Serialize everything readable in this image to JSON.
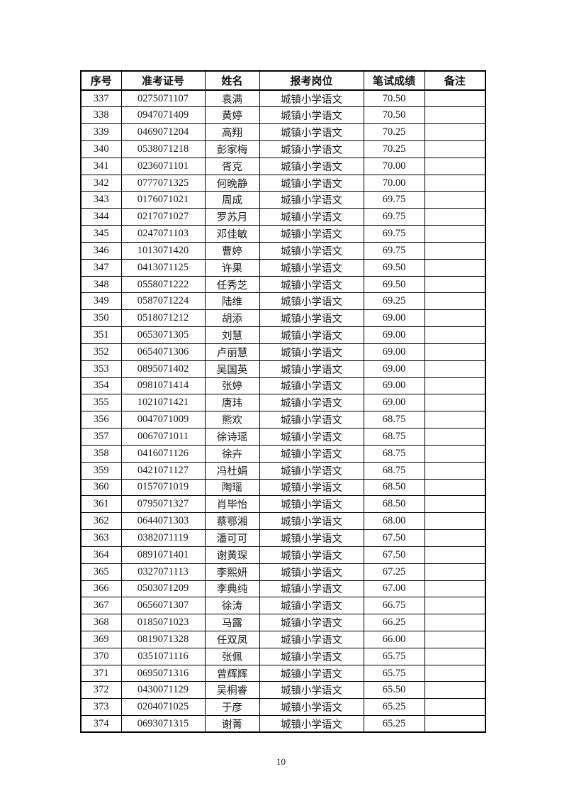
{
  "page": {
    "number": "10"
  },
  "colors": {
    "background": "#ffffff",
    "border": "#000000",
    "text": "#1a1a1a"
  },
  "table": {
    "columns": [
      "序号",
      "准考证号",
      "姓名",
      "报考岗位",
      "笔试成绩",
      "备注"
    ],
    "rows": [
      [
        "337",
        "0275071107",
        "袁满",
        "城镇小学语文",
        "70.50",
        ""
      ],
      [
        "338",
        "0947071409",
        "黄婷",
        "城镇小学语文",
        "70.50",
        ""
      ],
      [
        "339",
        "0469071204",
        "高翔",
        "城镇小学语文",
        "70.25",
        ""
      ],
      [
        "340",
        "0538071218",
        "彭家梅",
        "城镇小学语文",
        "70.25",
        ""
      ],
      [
        "341",
        "0236071101",
        "胥克",
        "城镇小学语文",
        "70.00",
        ""
      ],
      [
        "342",
        "0777071325",
        "何晚静",
        "城镇小学语文",
        "70.00",
        ""
      ],
      [
        "343",
        "0176071021",
        "周成",
        "城镇小学语文",
        "69.75",
        ""
      ],
      [
        "344",
        "0217071027",
        "罗苏月",
        "城镇小学语文",
        "69.75",
        ""
      ],
      [
        "345",
        "0247071103",
        "邓佳敏",
        "城镇小学语文",
        "69.75",
        ""
      ],
      [
        "346",
        "1013071420",
        "曹婷",
        "城镇小学语文",
        "69.75",
        ""
      ],
      [
        "347",
        "0413071125",
        "许果",
        "城镇小学语文",
        "69.50",
        ""
      ],
      [
        "348",
        "0558071222",
        "任秀芝",
        "城镇小学语文",
        "69.50",
        ""
      ],
      [
        "349",
        "0587071224",
        "陆维",
        "城镇小学语文",
        "69.25",
        ""
      ],
      [
        "350",
        "0518071212",
        "胡添",
        "城镇小学语文",
        "69.00",
        ""
      ],
      [
        "351",
        "0653071305",
        "刘慧",
        "城镇小学语文",
        "69.00",
        ""
      ],
      [
        "352",
        "0654071306",
        "卢丽慧",
        "城镇小学语文",
        "69.00",
        ""
      ],
      [
        "353",
        "0895071402",
        "吴国英",
        "城镇小学语文",
        "69.00",
        ""
      ],
      [
        "354",
        "0981071414",
        "张婷",
        "城镇小学语文",
        "69.00",
        ""
      ],
      [
        "355",
        "1021071421",
        "唐玮",
        "城镇小学语文",
        "69.00",
        ""
      ],
      [
        "356",
        "0047071009",
        "熊欢",
        "城镇小学语文",
        "68.75",
        ""
      ],
      [
        "357",
        "0067071011",
        "徐诗瑶",
        "城镇小学语文",
        "68.75",
        ""
      ],
      [
        "358",
        "0416071126",
        "徐卉",
        "城镇小学语文",
        "68.75",
        ""
      ],
      [
        "359",
        "0421071127",
        "冯杜娟",
        "城镇小学语文",
        "68.75",
        ""
      ],
      [
        "360",
        "0157071019",
        "陶瑶",
        "城镇小学语文",
        "68.50",
        ""
      ],
      [
        "361",
        "0795071327",
        "肖毕怡",
        "城镇小学语文",
        "68.50",
        ""
      ],
      [
        "362",
        "0644071303",
        "蔡鄂湘",
        "城镇小学语文",
        "68.00",
        ""
      ],
      [
        "363",
        "0382071119",
        "潘可可",
        "城镇小学语文",
        "67.50",
        ""
      ],
      [
        "364",
        "0891071401",
        "谢黄琛",
        "城镇小学语文",
        "67.50",
        ""
      ],
      [
        "365",
        "0327071113",
        "李熙妍",
        "城镇小学语文",
        "67.25",
        ""
      ],
      [
        "366",
        "0503071209",
        "李典纯",
        "城镇小学语文",
        "67.00",
        ""
      ],
      [
        "367",
        "0656071307",
        "徐涛",
        "城镇小学语文",
        "66.75",
        ""
      ],
      [
        "368",
        "0185071023",
        "马露",
        "城镇小学语文",
        "66.25",
        ""
      ],
      [
        "369",
        "0819071328",
        "任双凤",
        "城镇小学语文",
        "66.00",
        ""
      ],
      [
        "370",
        "0351071116",
        "张佩",
        "城镇小学语文",
        "65.75",
        ""
      ],
      [
        "371",
        "0695071316",
        "曾辉辉",
        "城镇小学语文",
        "65.75",
        ""
      ],
      [
        "372",
        "0430071129",
        "吴桐睿",
        "城镇小学语文",
        "65.50",
        ""
      ],
      [
        "373",
        "0204071025",
        "于彦",
        "城镇小学语文",
        "65.25",
        ""
      ],
      [
        "374",
        "0693071315",
        "谢菁",
        "城镇小学语文",
        "65.25",
        ""
      ]
    ]
  }
}
